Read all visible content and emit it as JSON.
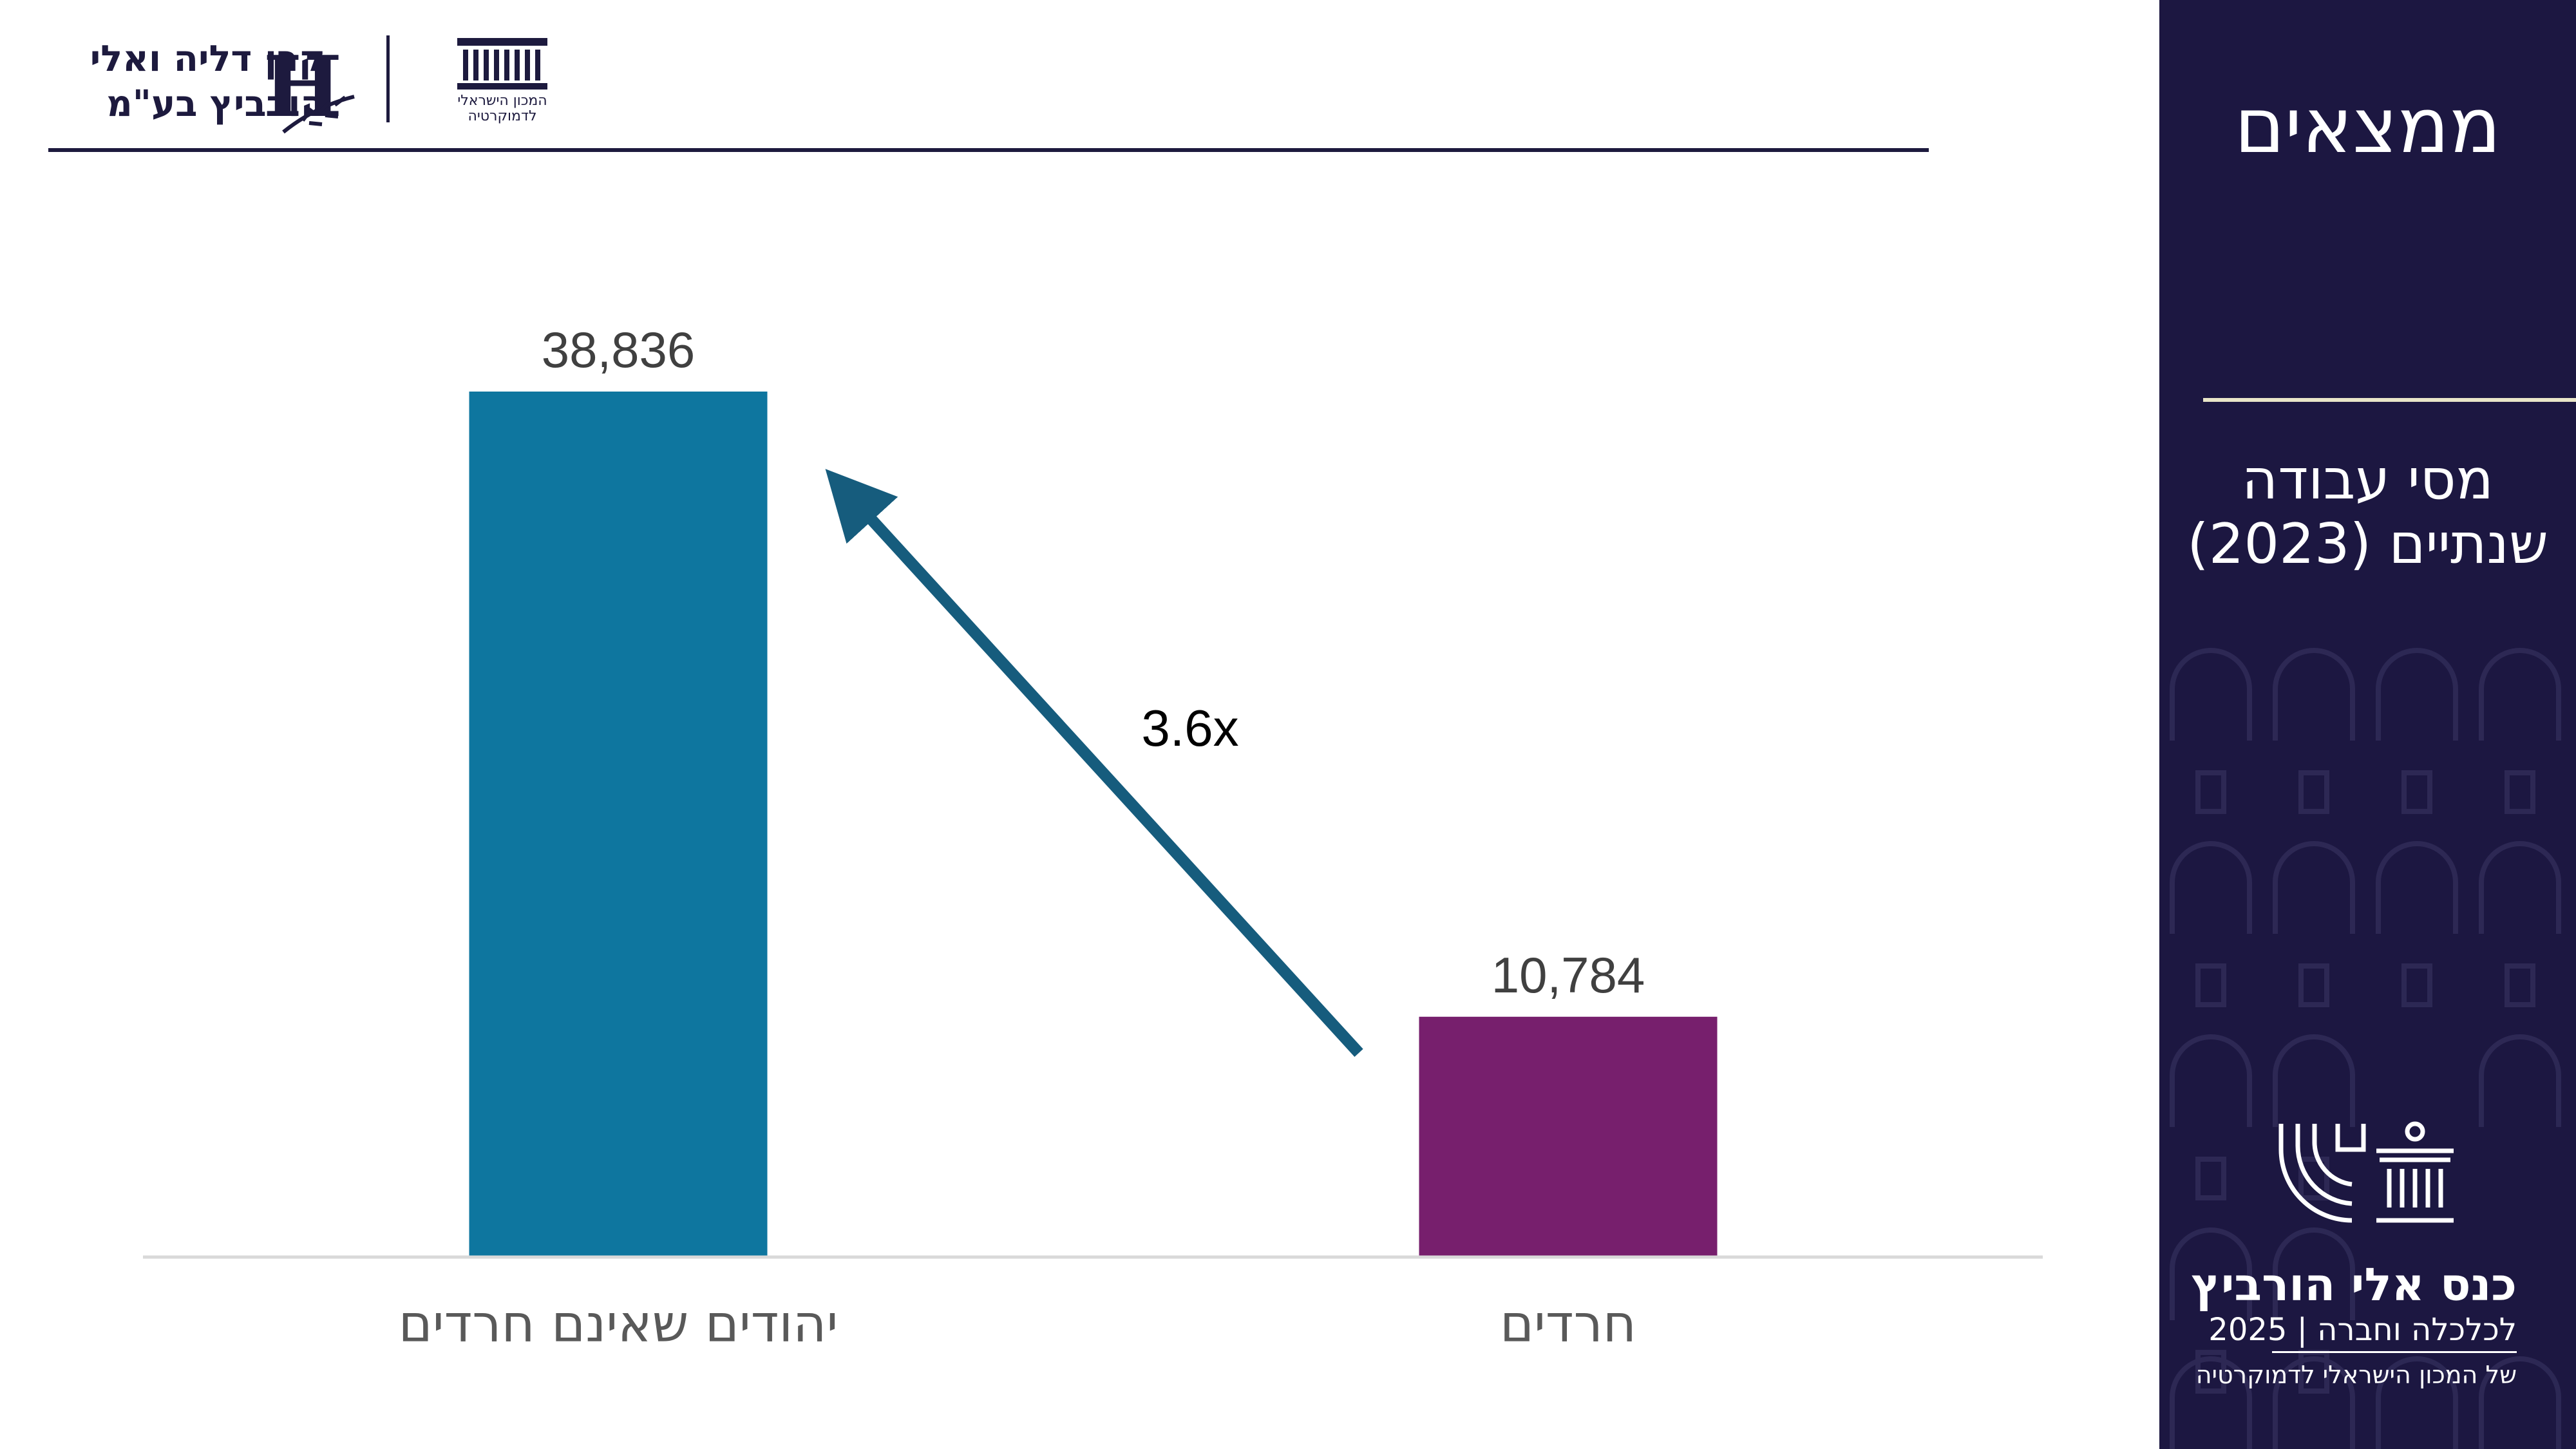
{
  "header": {
    "foundation_line1": "קרן דליה ואלי",
    "foundation_line2": "הורביץ בע\"מ",
    "institute_line1": "המכון הישראלי",
    "institute_line2": "לדמוקרטיה"
  },
  "sidebar": {
    "title": "ממצאים",
    "subtitle_line1": "מסי עבודה",
    "subtitle_line2": "שנתיים (2023)",
    "conference_line1": "כנס אלי הורביץ",
    "conference_line2": "לכלכלה וחברה | 2025",
    "conference_line3": "של המכון הישראלי לדמוקרטיה"
  },
  "colors": {
    "navy": "#1c1741",
    "bar_non_haredi": "#0e769f",
    "bar_haredi": "#771f6d",
    "arrow": "#165c7d",
    "sidebar_rule": "#e9e5c8"
  },
  "chart_data": {
    "type": "bar",
    "categories": [
      "יהודים שאינם חרדים",
      "חרדים"
    ],
    "values": [
      38836,
      10784
    ],
    "value_labels": [
      "38,836",
      "10,784"
    ],
    "colors": [
      "#0e769f",
      "#771f6d"
    ],
    "annotation": "3.6x",
    "ylim": [
      0,
      38836
    ],
    "grid": false,
    "legend": "none"
  }
}
